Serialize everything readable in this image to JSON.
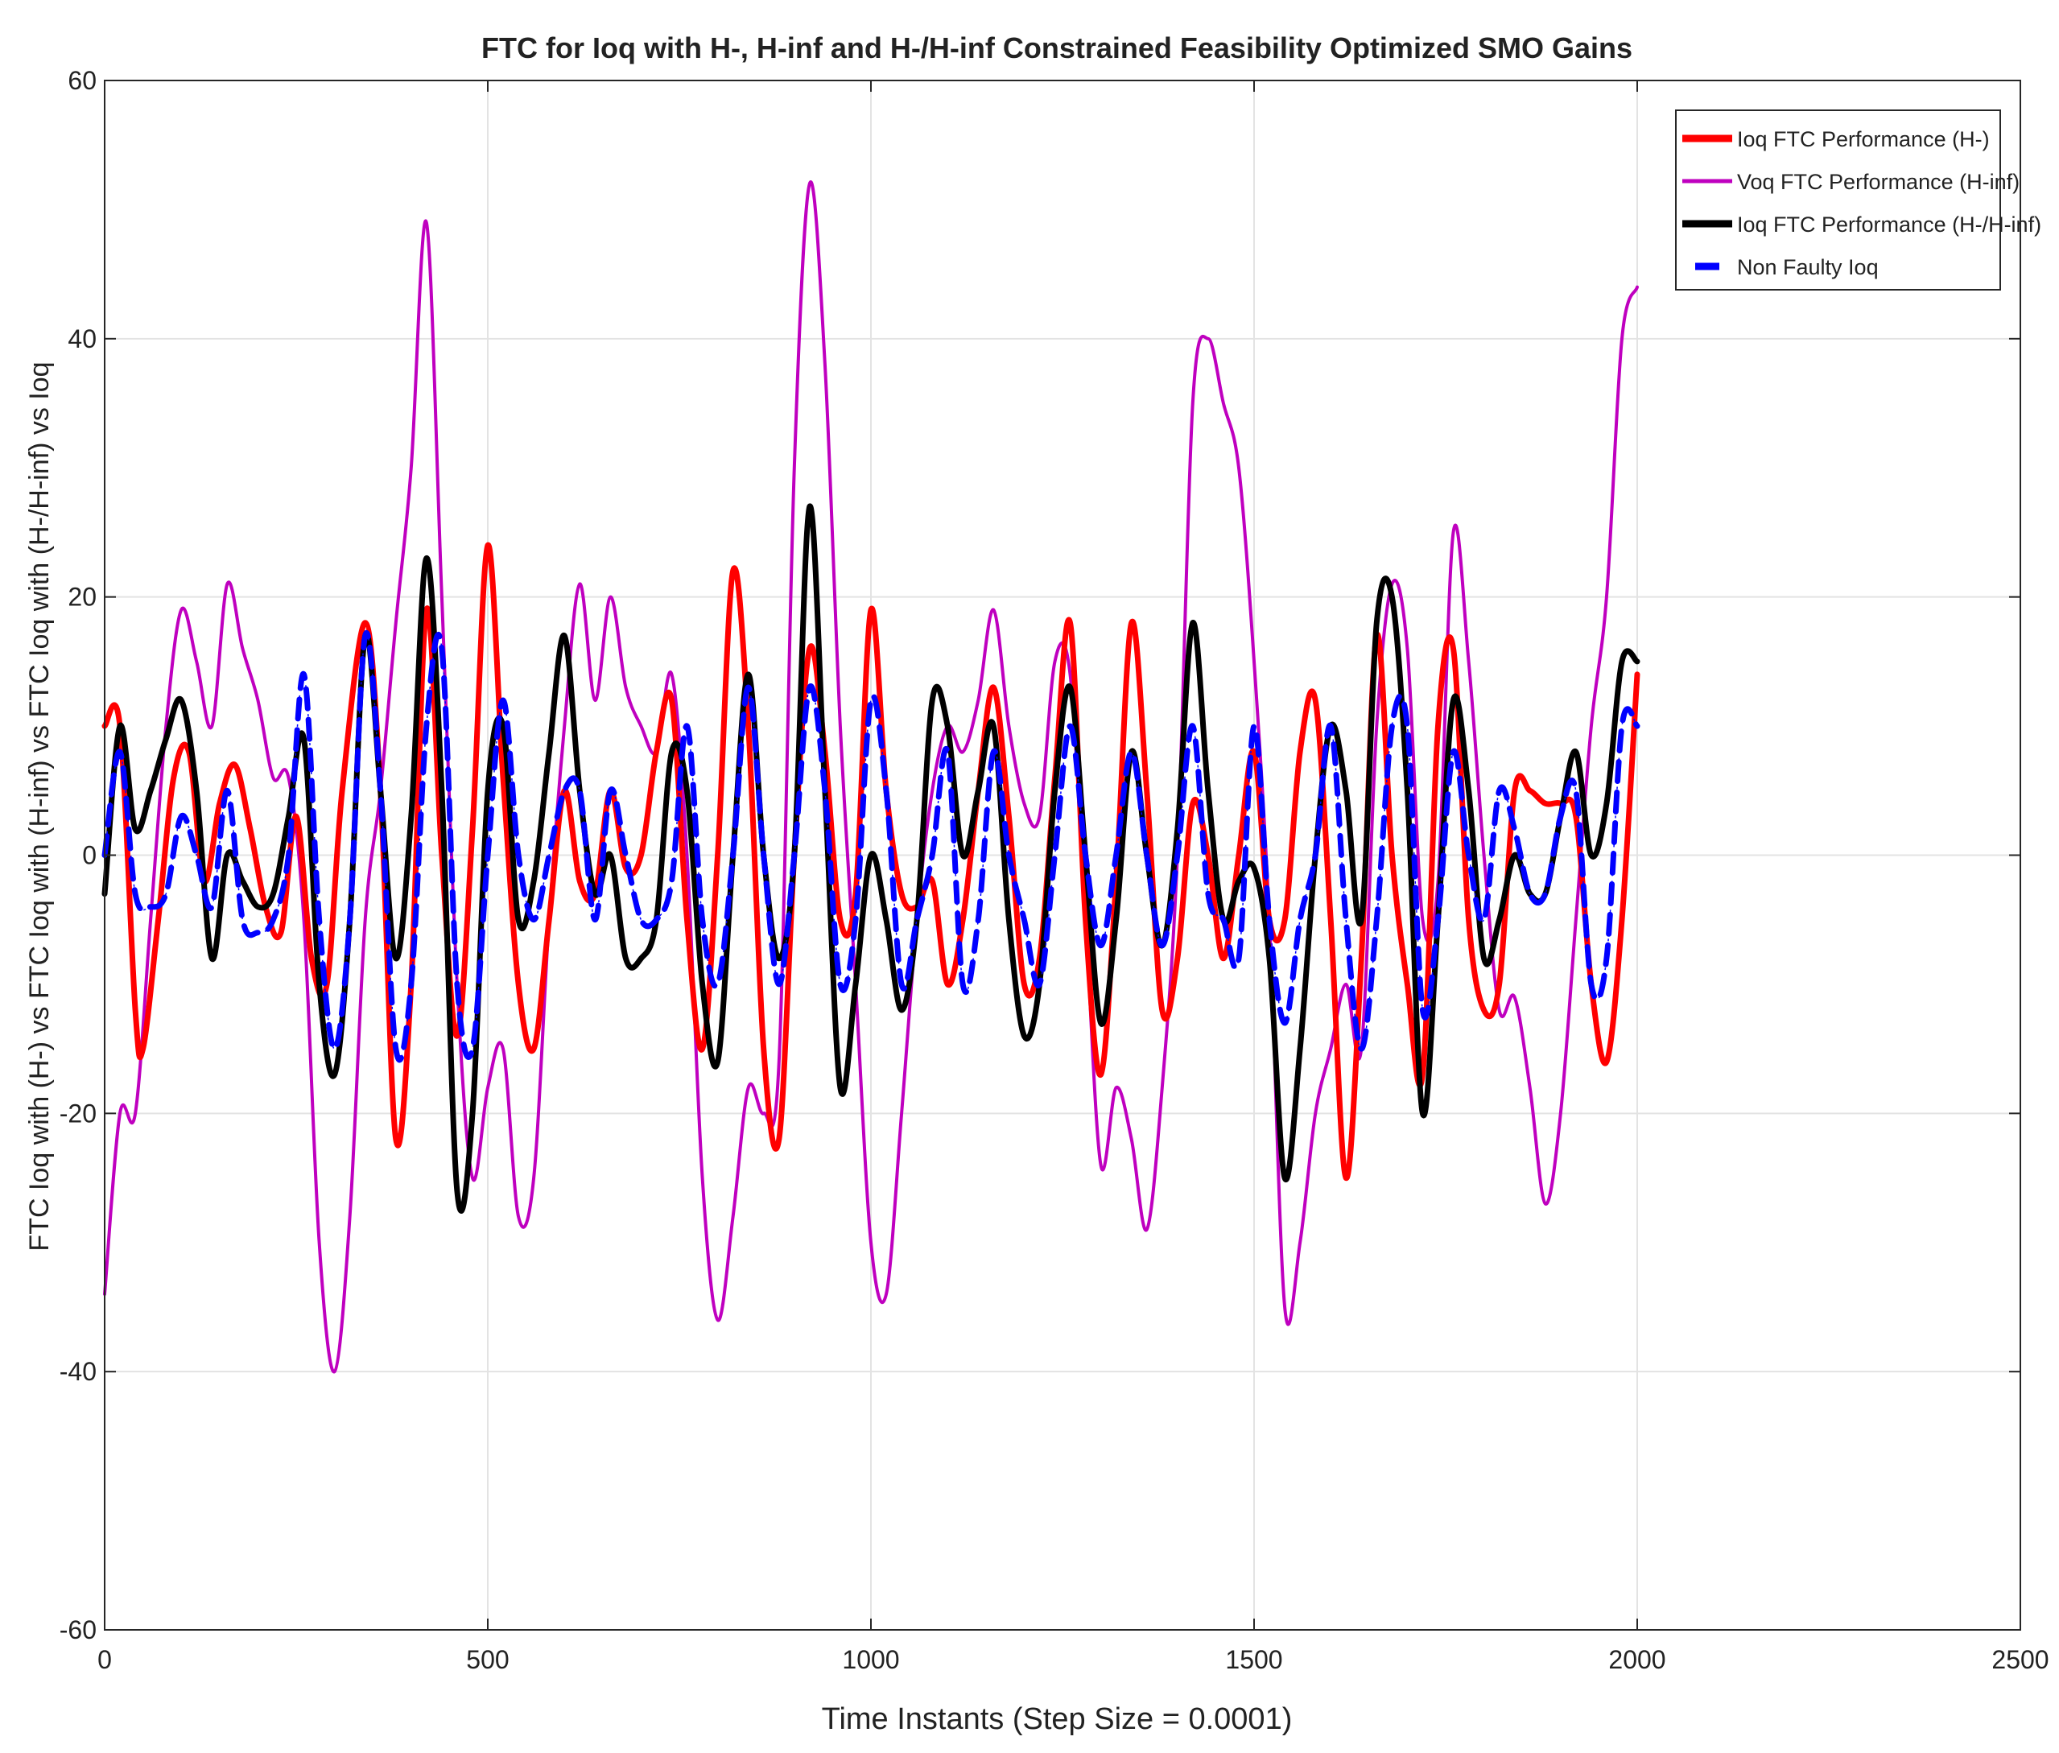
{
  "chart_data": {
    "type": "line",
    "title": "FTC for Ioq with H-, H-inf and H-/H-inf Constrained Feasibility Optimized SMO Gains",
    "xlabel": "Time Instants (Step Size = 0.0001)",
    "ylabel": "FTC Ioq with (H-) vs FTC Ioq with (H-inf) vs FTC Ioq with (H-/H-inf) vs Ioq",
    "xlim": [
      0,
      2500
    ],
    "ylim": [
      -60,
      60
    ],
    "xticks": [
      0,
      500,
      1000,
      1500,
      2000,
      2500
    ],
    "yticks": [
      -60,
      -40,
      -20,
      0,
      20,
      40,
      60
    ],
    "grid": true,
    "legend_position": "top-right",
    "series": [
      {
        "name": "Ioq FTC Performance (H-)",
        "color": "#ff0000",
        "style": "solid",
        "x": [
          0,
          20,
          40,
          50,
          70,
          90,
          110,
          130,
          150,
          170,
          190,
          210,
          230,
          250,
          270,
          290,
          310,
          340,
          360,
          380,
          400,
          420,
          440,
          460,
          480,
          500,
          520,
          540,
          560,
          580,
          600,
          620,
          640,
          660,
          680,
          700,
          720,
          740,
          760,
          780,
          800,
          820,
          840,
          860,
          880,
          900,
          920,
          940,
          960,
          980,
          1000,
          1020,
          1040,
          1060,
          1080,
          1100,
          1120,
          1140,
          1160,
          1180,
          1200,
          1220,
          1240,
          1260,
          1280,
          1300,
          1320,
          1340,
          1360,
          1380,
          1400,
          1420,
          1440,
          1460,
          1480,
          1500,
          1520,
          1540,
          1560,
          1580,
          1600,
          1620,
          1640,
          1660,
          1680,
          1700,
          1720,
          1740,
          1760,
          1780,
          1800,
          1820,
          1840,
          1860,
          1880,
          1900,
          1920,
          1940,
          1960,
          1980,
          2000
        ],
        "values": [
          10,
          10,
          -12,
          -15,
          -5,
          6,
          8,
          -2,
          4,
          7,
          2,
          -4,
          -6,
          3,
          -8,
          -10,
          5,
          18,
          5,
          -22,
          -10,
          19,
          0,
          -14,
          2,
          24,
          6,
          -10,
          -15,
          -5,
          5,
          -2,
          -3,
          5,
          -1,
          0,
          8,
          12,
          -5,
          -15,
          0,
          22,
          10,
          -15,
          -22,
          0,
          16,
          8,
          -5,
          -3,
          19,
          5,
          -3,
          -4,
          -2,
          -10,
          -5,
          5,
          13,
          3,
          -10,
          -8,
          6,
          18,
          -5,
          -17,
          -2,
          18,
          5,
          -12,
          -8,
          4,
          0,
          -8,
          0,
          8,
          -5,
          -5,
          8,
          12,
          -5,
          -25,
          -8,
          17,
          0,
          -10,
          -17,
          10,
          16,
          -5,
          -12,
          -10,
          5,
          5,
          4,
          4,
          3,
          -10,
          -16,
          -5,
          14
        ]
      },
      {
        "name": "Voq FTC Performance (H-inf)",
        "color": "#bf00bf",
        "style": "solid",
        "x": [
          0,
          20,
          40,
          60,
          80,
          100,
          120,
          140,
          160,
          180,
          200,
          220,
          240,
          260,
          280,
          300,
          320,
          340,
          360,
          380,
          400,
          420,
          440,
          460,
          480,
          500,
          520,
          540,
          560,
          580,
          600,
          620,
          640,
          660,
          680,
          700,
          720,
          740,
          760,
          780,
          800,
          820,
          840,
          860,
          880,
          900,
          920,
          940,
          960,
          980,
          1000,
          1020,
          1040,
          1060,
          1080,
          1100,
          1120,
          1140,
          1160,
          1180,
          1200,
          1220,
          1240,
          1260,
          1280,
          1300,
          1320,
          1340,
          1360,
          1380,
          1400,
          1420,
          1440,
          1460,
          1480,
          1500,
          1520,
          1540,
          1560,
          1580,
          1600,
          1620,
          1640,
          1660,
          1680,
          1700,
          1720,
          1740,
          1760,
          1780,
          1800,
          1820,
          1840,
          1860,
          1880,
          1900,
          1920,
          1940,
          1960,
          1980,
          2000
        ],
        "values": [
          -34,
          -20,
          -20,
          -5,
          10,
          19,
          15,
          10,
          21,
          16,
          12,
          6,
          6,
          -5,
          -30,
          -40,
          -28,
          -5,
          5,
          18,
          30,
          49,
          20,
          -10,
          -25,
          -18,
          -15,
          -28,
          -25,
          -5,
          10,
          21,
          12,
          20,
          13,
          10,
          8,
          14,
          0,
          -25,
          -36,
          -28,
          -18,
          -20,
          -16,
          30,
          52,
          38,
          10,
          -10,
          -30,
          -34,
          -20,
          -5,
          5,
          10,
          8,
          12,
          19,
          10,
          4,
          3,
          15,
          14,
          -5,
          -24,
          -18,
          -22,
          -29,
          -18,
          0,
          35,
          40,
          35,
          30,
          15,
          -5,
          -35,
          -30,
          -20,
          -15,
          -10,
          -15,
          10,
          21,
          16,
          -5,
          -2,
          25,
          15,
          0,
          -12,
          -11,
          -18,
          -27,
          -20,
          -5,
          10,
          20,
          40,
          44
        ]
      },
      {
        "name": "Ioq FTC Performance (H-/H-inf)",
        "color": "#000000",
        "style": "solid",
        "x": [
          0,
          20,
          40,
          60,
          80,
          100,
          120,
          140,
          160,
          180,
          200,
          220,
          240,
          260,
          280,
          300,
          320,
          340,
          360,
          380,
          400,
          420,
          440,
          460,
          480,
          500,
          520,
          540,
          560,
          580,
          600,
          620,
          640,
          660,
          680,
          700,
          720,
          740,
          760,
          780,
          800,
          820,
          840,
          860,
          880,
          900,
          920,
          940,
          960,
          980,
          1000,
          1020,
          1040,
          1060,
          1080,
          1100,
          1120,
          1140,
          1160,
          1180,
          1200,
          1220,
          1240,
          1260,
          1280,
          1300,
          1320,
          1340,
          1360,
          1380,
          1400,
          1420,
          1440,
          1460,
          1480,
          1500,
          1520,
          1540,
          1560,
          1580,
          1600,
          1620,
          1640,
          1660,
          1680,
          1700,
          1720,
          1740,
          1760,
          1780,
          1800,
          1820,
          1840,
          1860,
          1880,
          1900,
          1920,
          1940,
          1960,
          1980,
          2000
        ],
        "values": [
          -3,
          10,
          2,
          5,
          9,
          12,
          5,
          -8,
          0,
          -2,
          -4,
          -3,
          3,
          9,
          -10,
          -17,
          -5,
          17,
          5,
          -8,
          3,
          23,
          5,
          -26,
          -20,
          5,
          10,
          -5,
          -2,
          8,
          17,
          5,
          -3,
          0,
          -8,
          -8,
          -5,
          8,
          5,
          -10,
          -16,
          0,
          14,
          0,
          -8,
          0,
          27,
          5,
          -18,
          -10,
          0,
          -5,
          -12,
          -5,
          12,
          10,
          0,
          5,
          10,
          -5,
          -14,
          -10,
          5,
          13,
          0,
          -13,
          -5,
          8,
          0,
          -7,
          2,
          18,
          5,
          -5,
          -2,
          -1,
          -8,
          -25,
          -15,
          0,
          10,
          5,
          -5,
          18,
          20,
          5,
          -20,
          -5,
          12,
          5,
          -8,
          -5,
          0,
          -3,
          -3,
          3,
          8,
          0,
          4,
          15,
          15
        ]
      },
      {
        "name": "Non Faulty Ioq",
        "color": "#0000ff",
        "style": "dashed",
        "x": [
          0,
          20,
          40,
          60,
          80,
          100,
          120,
          140,
          160,
          180,
          200,
          220,
          240,
          260,
          280,
          300,
          320,
          340,
          360,
          380,
          400,
          420,
          440,
          460,
          480,
          500,
          520,
          540,
          560,
          580,
          600,
          620,
          640,
          660,
          680,
          700,
          720,
          740,
          760,
          780,
          800,
          820,
          840,
          860,
          880,
          900,
          920,
          940,
          960,
          980,
          1000,
          1020,
          1040,
          1060,
          1080,
          1100,
          1120,
          1140,
          1160,
          1180,
          1200,
          1220,
          1240,
          1260,
          1280,
          1300,
          1320,
          1340,
          1360,
          1380,
          1400,
          1420,
          1440,
          1460,
          1480,
          1500,
          1520,
          1540,
          1560,
          1580,
          1600,
          1620,
          1640,
          1660,
          1680,
          1700,
          1720,
          1740,
          1760,
          1780,
          1800,
          1820,
          1840,
          1860,
          1880,
          1900,
          1920,
          1940,
          1960,
          1980,
          2000
        ],
        "values": [
          0,
          8,
          -3,
          -4,
          -3,
          3,
          0,
          -4,
          5,
          -5,
          -6,
          -5,
          0,
          14,
          -5,
          -15,
          -5,
          17,
          5,
          -15,
          -10,
          10,
          16,
          -10,
          -15,
          0,
          12,
          0,
          -5,
          0,
          5,
          5,
          -5,
          5,
          0,
          -5,
          -5,
          -2,
          10,
          -5,
          -10,
          0,
          13,
          0,
          -10,
          0,
          13,
          5,
          -10,
          -5,
          12,
          5,
          -10,
          -5,
          0,
          8,
          -10,
          -5,
          8,
          0,
          -5,
          -10,
          0,
          10,
          0,
          -7,
          0,
          8,
          0,
          -7,
          0,
          10,
          -3,
          -5,
          -8,
          10,
          -5,
          -13,
          -5,
          0,
          10,
          -5,
          -15,
          -5,
          10,
          10,
          -12,
          -5,
          8,
          0,
          -5,
          5,
          2,
          -3,
          -3,
          3,
          5,
          -10,
          -8,
          10,
          10
        ]
      }
    ]
  }
}
